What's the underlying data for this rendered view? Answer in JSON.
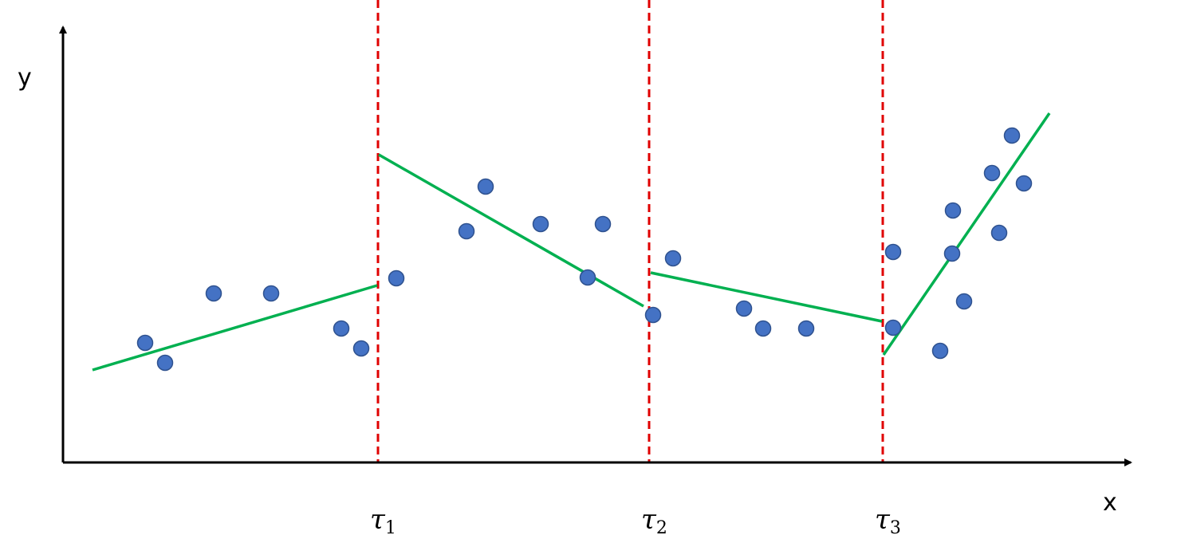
{
  "chart_data": {
    "type": "scatter",
    "xlabel": "x",
    "ylabel": "y",
    "xlim": [
      0,
      1340
    ],
    "ylim": [
      0,
      550
    ],
    "grid": false,
    "colors": {
      "points": "#4472C4",
      "point_edge": "#2F528F",
      "fit_lines": "#00B050",
      "change_lines": "#E00000",
      "axes": "#000000"
    },
    "points": [
      {
        "x": 103,
        "y": 150
      },
      {
        "x": 128,
        "y": 125
      },
      {
        "x": 189,
        "y": 212
      },
      {
        "x": 261,
        "y": 212
      },
      {
        "x": 349,
        "y": 168
      },
      {
        "x": 374,
        "y": 143
      },
      {
        "x": 418,
        "y": 231
      },
      {
        "x": 506,
        "y": 290
      },
      {
        "x": 530,
        "y": 346
      },
      {
        "x": 599,
        "y": 299
      },
      {
        "x": 658,
        "y": 232
      },
      {
        "x": 677,
        "y": 299
      },
      {
        "x": 740,
        "y": 185
      },
      {
        "x": 765,
        "y": 256
      },
      {
        "x": 854,
        "y": 193
      },
      {
        "x": 878,
        "y": 168
      },
      {
        "x": 932,
        "y": 168
      },
      {
        "x": 1041,
        "y": 264
      },
      {
        "x": 1041,
        "y": 169
      },
      {
        "x": 1100,
        "y": 140
      },
      {
        "x": 1115,
        "y": 262
      },
      {
        "x": 1116,
        "y": 316
      },
      {
        "x": 1130,
        "y": 202
      },
      {
        "x": 1165,
        "y": 363
      },
      {
        "x": 1174,
        "y": 288
      },
      {
        "x": 1190,
        "y": 410
      },
      {
        "x": 1205,
        "y": 350
      }
    ],
    "change_points": [
      {
        "x": 395,
        "label": "τ",
        "sub": "1"
      },
      {
        "x": 735,
        "label": "τ",
        "sub": "2"
      },
      {
        "x": 1028,
        "label": "τ",
        "sub": "3"
      }
    ],
    "segments": [
      {
        "x1": 37,
        "y1": 116,
        "x2": 394,
        "y2": 222
      },
      {
        "x1": 396,
        "y1": 386,
        "x2": 728,
        "y2": 196
      },
      {
        "x1": 737,
        "y1": 238,
        "x2": 1027,
        "y2": 177
      },
      {
        "x1": 1029,
        "y1": 135,
        "x2": 1237,
        "y2": 438
      }
    ]
  }
}
